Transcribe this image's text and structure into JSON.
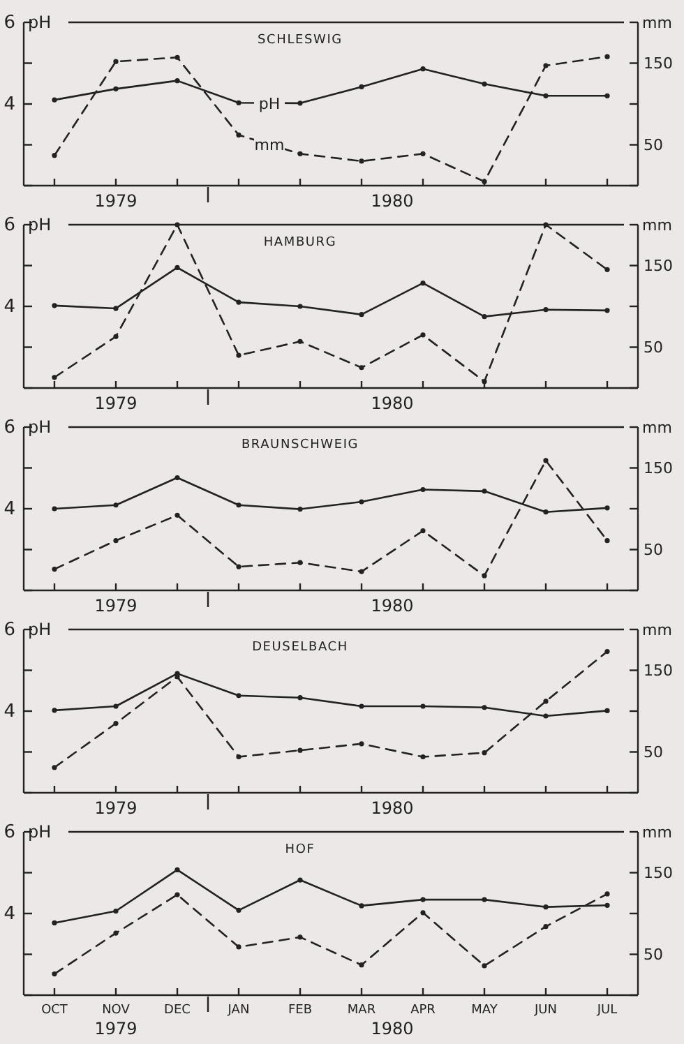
{
  "chart_data": [
    {
      "type": "line",
      "title": "SCHLESWIG",
      "categories": [
        null,
        null,
        null,
        null,
        null,
        null,
        null,
        null,
        null,
        null
      ],
      "ylabel": "pH",
      "y2label": "mm",
      "ylim": [
        2,
        6
      ],
      "yticks": [
        {
          "value": 2,
          "label": null
        },
        {
          "value": 3,
          "label": null
        },
        {
          "value": 4,
          "label": "4"
        },
        {
          "value": 5,
          "label": null
        },
        {
          "value": 6,
          "label": "6"
        }
      ],
      "y2lim": [
        0,
        200
      ],
      "y2ticks": [
        {
          "value": 0,
          "label": null
        },
        {
          "value": 50,
          "label": "50"
        },
        {
          "value": 100,
          "label": null
        },
        {
          "value": 150,
          "label": "150"
        },
        {
          "value": 200,
          "label": null
        }
      ],
      "marker": "circle",
      "annotations": [
        "1979",
        "1980"
      ],
      "series": [
        {
          "name": "pH",
          "color": "#222222",
          "line_style": "solid",
          "values": [
            4.1,
            4.37,
            4.57,
            4.03,
            4.02,
            4.42,
            4.86,
            4.49,
            4.2,
            4.2
          ]
        },
        {
          "name": "mm",
          "color": "#222222",
          "line_style": "dashed",
          "axis": "y2",
          "values": [
            37,
            152,
            157,
            62,
            39,
            30,
            39,
            5,
            147,
            158
          ]
        }
      ]
    },
    {
      "type": "line",
      "title": "HAMBURG",
      "categories": [
        null,
        null,
        null,
        null,
        null,
        null,
        null,
        null,
        null,
        null
      ],
      "ylabel": "pH",
      "y2label": "mm",
      "ylim": [
        2,
        6
      ],
      "yticks": [
        {
          "value": 2,
          "label": null
        },
        {
          "value": 3,
          "label": null
        },
        {
          "value": 4,
          "label": "4"
        },
        {
          "value": 5,
          "label": null
        },
        {
          "value": 6,
          "label": "6"
        }
      ],
      "y2lim": [
        0,
        200
      ],
      "y2ticks": [
        {
          "value": 0,
          "label": null
        },
        {
          "value": 50,
          "label": "50"
        },
        {
          "value": 100,
          "label": null
        },
        {
          "value": 150,
          "label": "150"
        },
        {
          "value": 200,
          "label": null
        }
      ],
      "marker": "circle",
      "annotations": [
        "1979",
        "1980"
      ],
      "series": [
        {
          "color": "#222222",
          "line_style": "solid",
          "values": [
            4.02,
            3.95,
            4.95,
            4.1,
            4.0,
            3.8,
            4.57,
            3.75,
            3.92,
            3.9
          ]
        },
        {
          "color": "#222222",
          "line_style": "dashed",
          "axis": "y2",
          "values": [
            13,
            63,
            200,
            40,
            57,
            25,
            65,
            8,
            200,
            145
          ]
        }
      ]
    },
    {
      "type": "line",
      "title": "BRAUNSCHWEIG",
      "categories": [
        null,
        null,
        null,
        null,
        null,
        null,
        null,
        null,
        null,
        null
      ],
      "ylabel": "pH",
      "y2label": "mm",
      "ylim": [
        2,
        6
      ],
      "yticks": [
        {
          "value": 2,
          "label": null
        },
        {
          "value": 3,
          "label": null
        },
        {
          "value": 4,
          "label": "4"
        },
        {
          "value": 5,
          "label": null
        },
        {
          "value": 6,
          "label": "6"
        }
      ],
      "y2lim": [
        0,
        200
      ],
      "y2ticks": [
        {
          "value": 0,
          "label": null
        },
        {
          "value": 50,
          "label": "50"
        },
        {
          "value": 100,
          "label": null
        },
        {
          "value": 150,
          "label": "150"
        },
        {
          "value": 200,
          "label": null
        }
      ],
      "marker": "circle",
      "annotations": [
        "1979",
        "1980"
      ],
      "series": [
        {
          "color": "#222222",
          "line_style": "solid",
          "values": [
            4.0,
            4.09,
            4.76,
            4.09,
            3.99,
            4.17,
            4.47,
            4.43,
            3.92,
            4.02
          ]
        },
        {
          "color": "#222222",
          "line_style": "dashed",
          "axis": "y2",
          "values": [
            26,
            61,
            92,
            29,
            34,
            23,
            73,
            18,
            159,
            61
          ]
        }
      ]
    },
    {
      "type": "line",
      "title": "DEUSELBACH",
      "categories": [
        null,
        null,
        null,
        null,
        null,
        null,
        null,
        null,
        null,
        null
      ],
      "ylabel": "pH",
      "y2label": "mm",
      "ylim": [
        2,
        6
      ],
      "yticks": [
        {
          "value": 2,
          "label": null
        },
        {
          "value": 3,
          "label": null
        },
        {
          "value": 4,
          "label": "4"
        },
        {
          "value": 5,
          "label": null
        },
        {
          "value": 6,
          "label": "6"
        }
      ],
      "y2lim": [
        0,
        200
      ],
      "y2ticks": [
        {
          "value": 0,
          "label": null
        },
        {
          "value": 50,
          "label": "50"
        },
        {
          "value": 100,
          "label": null
        },
        {
          "value": 150,
          "label": "150"
        },
        {
          "value": 200,
          "label": null
        }
      ],
      "marker": "circle",
      "annotations": [
        "1979",
        "1980"
      ],
      "series": [
        {
          "color": "#222222",
          "line_style": "solid",
          "values": [
            4.02,
            4.12,
            4.92,
            4.38,
            4.33,
            4.12,
            4.12,
            4.09,
            3.88,
            4.01
          ]
        },
        {
          "color": "#222222",
          "line_style": "dashed",
          "axis": "y2",
          "values": [
            31,
            85,
            142,
            44,
            52,
            60,
            44,
            49,
            112,
            173
          ]
        }
      ]
    },
    {
      "type": "line",
      "title": "HOF",
      "categories": [
        "OCT",
        "NOV",
        "DEC",
        "JAN",
        "FEB",
        "MAR",
        "APR",
        "MAY",
        "JUN",
        "JUL"
      ],
      "ylabel": "pH",
      "y2label": "mm",
      "ylim": [
        2,
        6
      ],
      "yticks": [
        {
          "value": 2,
          "label": null
        },
        {
          "value": 3,
          "label": null
        },
        {
          "value": 4,
          "label": "4"
        },
        {
          "value": 5,
          "label": null
        },
        {
          "value": 6,
          "label": "6"
        }
      ],
      "y2lim": [
        0,
        200
      ],
      "y2ticks": [
        {
          "value": 0,
          "label": null
        },
        {
          "value": 50,
          "label": "50"
        },
        {
          "value": 100,
          "label": null
        },
        {
          "value": 150,
          "label": "150"
        },
        {
          "value": 200,
          "label": null
        }
      ],
      "marker": "circle",
      "annotations": [
        "1979",
        "1980"
      ],
      "series": [
        {
          "color": "#222222",
          "line_style": "solid",
          "values": [
            3.77,
            4.06,
            5.07,
            4.08,
            4.82,
            4.19,
            4.34,
            4.34,
            4.16,
            4.2
          ]
        },
        {
          "color": "#222222",
          "line_style": "dashed",
          "axis": "y2",
          "values": [
            26,
            76,
            123,
            59,
            71,
            37,
            101,
            36,
            84,
            124
          ]
        }
      ]
    }
  ]
}
